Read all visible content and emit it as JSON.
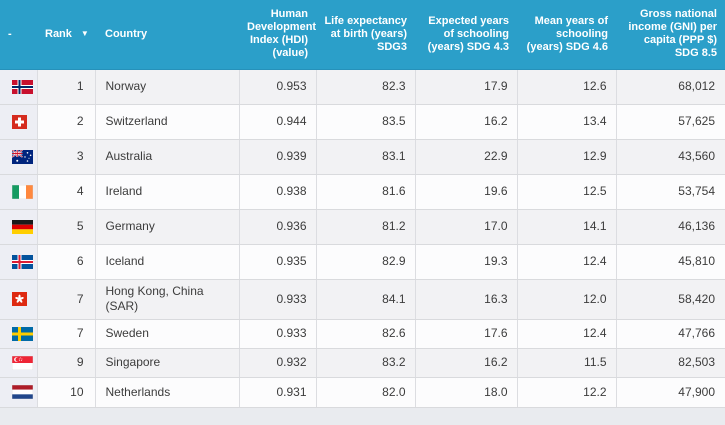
{
  "theme": {
    "header_bg": "#2b9fc9",
    "header_text": "#ffffff",
    "row_stripe": "#f2f2f4",
    "row_plain": "#fcfcfd",
    "flag_cell_bg": "#edeef4"
  },
  "table": {
    "columns": [
      {
        "key": "flag",
        "label": "-",
        "align": "left"
      },
      {
        "key": "rank",
        "label": "Rank",
        "sort": "▼",
        "align": "right"
      },
      {
        "key": "country",
        "label": "Country",
        "align": "left"
      },
      {
        "key": "hdi",
        "label": "Human Development Index (HDI) (value)",
        "align": "right"
      },
      {
        "key": "life_expectancy",
        "label": "Life expectancy at birth (years) SDG3",
        "align": "right"
      },
      {
        "key": "expected_schooling",
        "label": "Expected years of schooling (years) SDG 4.3",
        "align": "right"
      },
      {
        "key": "mean_schooling",
        "label": "Mean years of schooling (years) SDG 4.6",
        "align": "right"
      },
      {
        "key": "gni",
        "label": "Gross national income (GNI) per capita (PPP $) SDG 8.5",
        "align": "right"
      }
    ],
    "rows": [
      {
        "flag": "norway",
        "rank": "1",
        "country": "Norway",
        "hdi": "0.953",
        "life_expectancy": "82.3",
        "expected_schooling": "17.9",
        "mean_schooling": "12.6",
        "gni": "68,012"
      },
      {
        "flag": "switzerland",
        "rank": "2",
        "country": "Switzerland",
        "hdi": "0.944",
        "life_expectancy": "83.5",
        "expected_schooling": "16.2",
        "mean_schooling": "13.4",
        "gni": "57,625"
      },
      {
        "flag": "australia",
        "rank": "3",
        "country": "Australia",
        "hdi": "0.939",
        "life_expectancy": "83.1",
        "expected_schooling": "22.9",
        "mean_schooling": "12.9",
        "gni": "43,560"
      },
      {
        "flag": "ireland",
        "rank": "4",
        "country": "Ireland",
        "hdi": "0.938",
        "life_expectancy": "81.6",
        "expected_schooling": "19.6",
        "mean_schooling": "12.5",
        "gni": "53,754"
      },
      {
        "flag": "germany",
        "rank": "5",
        "country": "Germany",
        "hdi": "0.936",
        "life_expectancy": "81.2",
        "expected_schooling": "17.0",
        "mean_schooling": "14.1",
        "gni": "46,136"
      },
      {
        "flag": "iceland",
        "rank": "6",
        "country": "Iceland",
        "hdi": "0.935",
        "life_expectancy": "82.9",
        "expected_schooling": "19.3",
        "mean_schooling": "12.4",
        "gni": "45,810"
      },
      {
        "flag": "hongkong",
        "rank": "7",
        "country": "Hong Kong, China (SAR)",
        "hdi": "0.933",
        "life_expectancy": "84.1",
        "expected_schooling": "16.3",
        "mean_schooling": "12.0",
        "gni": "58,420"
      },
      {
        "flag": "sweden",
        "rank": "7",
        "country": "Sweden",
        "hdi": "0.933",
        "life_expectancy": "82.6",
        "expected_schooling": "17.6",
        "mean_schooling": "12.4",
        "gni": "47,766"
      },
      {
        "flag": "singapore",
        "rank": "9",
        "country": "Singapore",
        "hdi": "0.932",
        "life_expectancy": "83.2",
        "expected_schooling": "16.2",
        "mean_schooling": "11.5",
        "gni": "82,503"
      },
      {
        "flag": "netherlands",
        "rank": "10",
        "country": "Netherlands",
        "hdi": "0.931",
        "life_expectancy": "82.0",
        "expected_schooling": "18.0",
        "mean_schooling": "12.2",
        "gni": "47,900"
      }
    ]
  }
}
